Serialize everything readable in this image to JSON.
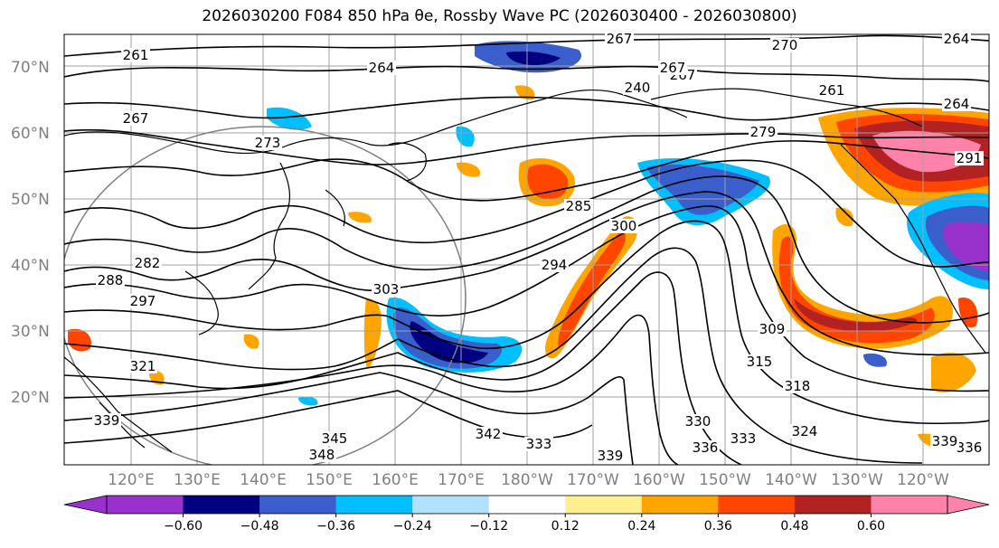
{
  "title": "2026030200 F084 850 hPa θe, Rossby Wave PC (2026030400 - 2026030800)",
  "lat_labels": [
    "70°N",
    "60°N",
    "50°N",
    "40°N",
    "30°N",
    "20°N"
  ],
  "lon_labels": [
    "120°E",
    "130°E",
    "140°E",
    "150°E",
    "160°E",
    "170°E",
    "180°W",
    "170°W",
    "160°W",
    "150°W",
    "140°W",
    "130°W",
    "120°W"
  ],
  "contour_labels": [
    "267",
    "270",
    "264",
    "261",
    "264",
    "267",
    "240",
    "267",
    "264",
    "261",
    "273",
    "267",
    "279",
    "291",
    "288",
    "282",
    "297",
    "285",
    "294",
    "300",
    "303",
    "309",
    "315",
    "318",
    "324",
    "330",
    "333",
    "336",
    "339",
    "342",
    "345",
    "348",
    "336",
    "333",
    "339",
    "321",
    "339"
  ],
  "colorbar": {
    "ticks": [
      "−0.60",
      "−0.48",
      "−0.36",
      "−0.24",
      "−0.12",
      "0.12",
      "0.24",
      "0.36",
      "0.48",
      "0.60"
    ],
    "colors": [
      "#9932cc",
      "#000080",
      "#3a5fcd",
      "#00bfff",
      "#b0e2ff",
      "#ffffff",
      "#fff08f",
      "#ffa500",
      "#ff4500",
      "#b22222",
      "#ff82ab",
      "#ff82ab"
    ]
  },
  "anomaly_colors": {
    "neg_strong": "#000080",
    "neg_mid": "#3a5fcd",
    "neg_light": "#00bfff",
    "neg_faint": "#b0e2ff",
    "neg_extreme": "#9932cc",
    "pos_faint": "#fff08f",
    "pos_light": "#ffa500",
    "pos_mid": "#ff4500",
    "pos_strong": "#b22222",
    "pos_extreme": "#ff82ab"
  }
}
